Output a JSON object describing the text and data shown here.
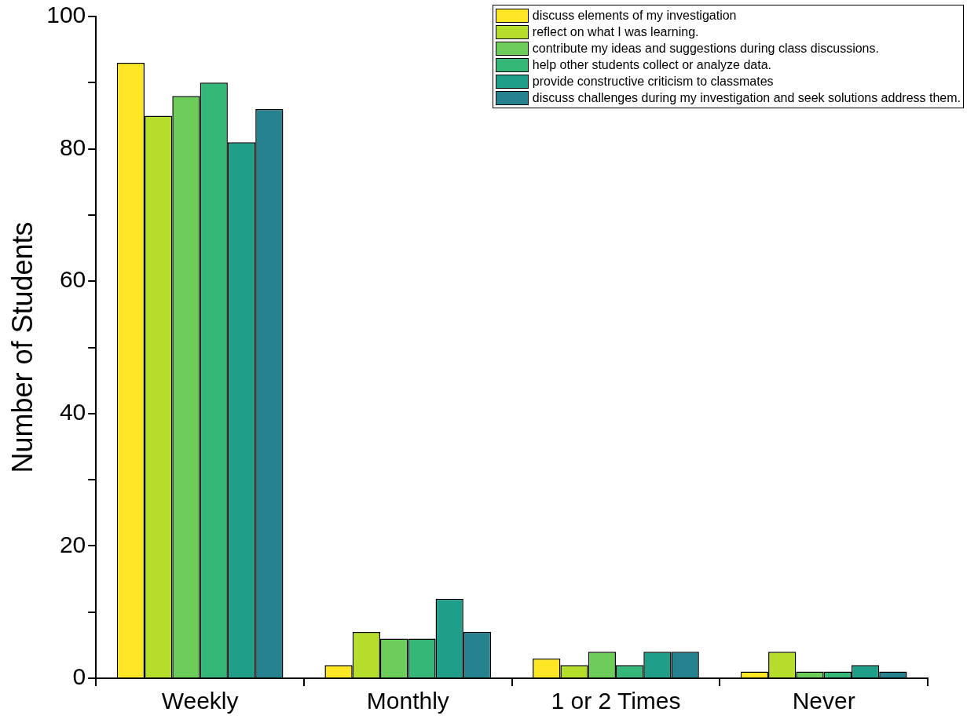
{
  "chart_data": {
    "type": "bar",
    "ylabel": "Number of Students",
    "categories": [
      "Weekly",
      "Monthly",
      "1 or 2 Times",
      "Never"
    ],
    "series": [
      {
        "name": "discuss elements of my investigation",
        "color": "#fde725",
        "values": [
          93,
          2,
          3,
          1
        ]
      },
      {
        "name": "reflect on what I was learning.",
        "color": "#b5de2b",
        "values": [
          85,
          7,
          2,
          4
        ]
      },
      {
        "name": "contribute my ideas and suggestions during class discussions.",
        "color": "#6ccd5a",
        "values": [
          88,
          6,
          4,
          1
        ]
      },
      {
        "name": "help other students collect or analyze data.",
        "color": "#35b779",
        "values": [
          90,
          6,
          2,
          1
        ]
      },
      {
        "name": "provide constructive criticism to classmates",
        "color": "#1f9e89",
        "values": [
          81,
          12,
          4,
          2
        ]
      },
      {
        "name": "discuss challenges during my investigation and seek solutions address them.",
        "color": "#26828e",
        "values": [
          86,
          7,
          4,
          1
        ]
      }
    ],
    "ylim": [
      0,
      100
    ],
    "yticks": [
      0,
      {
        "value": 10,
        "label": null
      },
      20,
      {
        "value": 30,
        "label": null
      },
      40,
      {
        "value": 50,
        "label": null
      },
      60,
      {
        "value": 70,
        "label": null
      },
      80,
      {
        "value": 90,
        "label": null
      },
      100
    ],
    "grid": false,
    "legend": "top right"
  }
}
